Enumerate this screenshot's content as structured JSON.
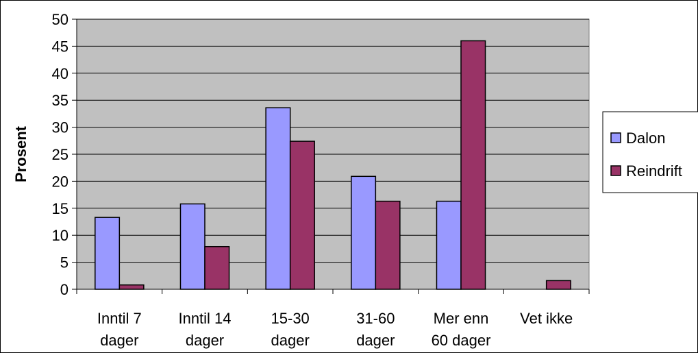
{
  "chart_data": {
    "type": "bar",
    "title": "",
    "xlabel": "",
    "ylabel": "Prosent",
    "ylim": [
      0,
      50
    ],
    "yticks": [
      "0",
      "5",
      "10",
      "15",
      "20",
      "25",
      "30",
      "35",
      "40",
      "45",
      "50"
    ],
    "categories": [
      [
        "Inntil 7",
        "dager"
      ],
      [
        "Inntil 14",
        "dager"
      ],
      [
        "15-30",
        "dager"
      ],
      [
        "31-60",
        "dager"
      ],
      [
        "Mer enn",
        "60 dager"
      ],
      [
        "Vet ikke"
      ]
    ],
    "series": [
      {
        "name": "Dalon",
        "color": "#9999ff",
        "values": [
          13.3,
          15.8,
          33.6,
          20.9,
          16.3,
          0
        ]
      },
      {
        "name": "Reindrift",
        "color": "#993366",
        "values": [
          0.8,
          7.9,
          27.4,
          16.3,
          46.0,
          1.6
        ]
      }
    ],
    "grid": true,
    "legend": "right",
    "plot_background": "#c0c0c0"
  }
}
